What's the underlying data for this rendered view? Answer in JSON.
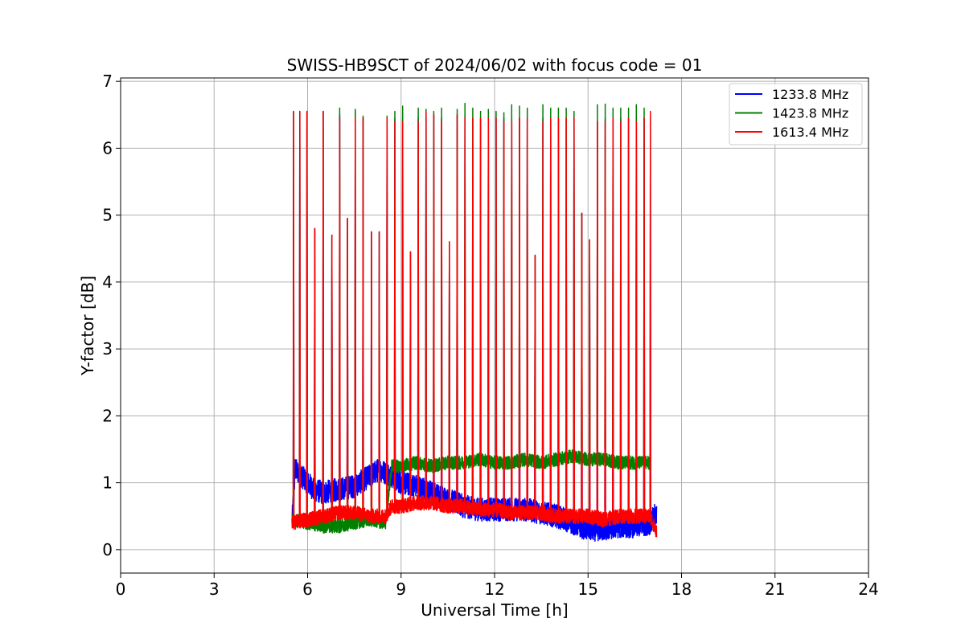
{
  "chart_data": {
    "type": "line",
    "title": "SWISS-HB9SCT of 2024/06/02 with focus code = 01",
    "xlabel": "Universal Time [h]",
    "ylabel": "Y-factor [dB]",
    "xlim": [
      0,
      24
    ],
    "ylim": [
      -0.35,
      7.05
    ],
    "xticks": [
      0,
      3,
      6,
      9,
      12,
      15,
      18,
      21,
      24
    ],
    "yticks": [
      0,
      1,
      2,
      3,
      4,
      5,
      6,
      7
    ],
    "grid": true,
    "legend_position": "top-right",
    "series": [
      {
        "name": "1233.8 MHz",
        "color": "#0000ff",
        "x": [
          5.5,
          5.6,
          5.8,
          6.0,
          6.2,
          6.5,
          7.0,
          7.5,
          8.0,
          8.3,
          8.7,
          9.0,
          9.5,
          10.0,
          10.5,
          11.0,
          11.5,
          12.0,
          12.5,
          13.0,
          13.5,
          14.0,
          14.5,
          15.0,
          15.5,
          16.0,
          16.5,
          17.0,
          17.2
        ],
        "y": [
          0.4,
          1.2,
          1.1,
          1.0,
          0.9,
          0.85,
          0.9,
          0.95,
          1.1,
          1.2,
          1.1,
          1.0,
          0.95,
          0.85,
          0.75,
          0.65,
          0.6,
          0.6,
          0.6,
          0.6,
          0.55,
          0.5,
          0.4,
          0.3,
          0.3,
          0.35,
          0.35,
          0.4,
          0.55
        ]
      },
      {
        "name": "1423.8 MHz",
        "color": "#008000",
        "x": [
          5.5,
          6.0,
          6.5,
          7.0,
          7.5,
          8.0,
          8.5,
          8.7,
          9.0,
          9.5,
          10.0,
          10.5,
          11.0,
          11.5,
          12.0,
          12.5,
          13.0,
          13.5,
          14.0,
          14.5,
          15.0,
          15.5,
          16.0,
          16.5,
          17.0
        ],
        "y": [
          0.45,
          0.4,
          0.35,
          0.35,
          0.4,
          0.45,
          0.4,
          1.25,
          1.25,
          1.3,
          1.25,
          1.3,
          1.3,
          1.35,
          1.3,
          1.3,
          1.35,
          1.3,
          1.35,
          1.4,
          1.35,
          1.35,
          1.3,
          1.3,
          1.3
        ]
      },
      {
        "name": "1613.4 MHz",
        "color": "#ff0000",
        "x": [
          5.5,
          6.0,
          6.5,
          7.0,
          7.5,
          8.0,
          8.5,
          8.7,
          9.0,
          9.5,
          10.0,
          10.5,
          11.0,
          11.5,
          12.0,
          12.5,
          13.0,
          13.5,
          14.0,
          14.5,
          15.0,
          15.5,
          16.0,
          16.5,
          17.0,
          17.2
        ],
        "y": [
          0.4,
          0.45,
          0.5,
          0.55,
          0.55,
          0.5,
          0.5,
          0.65,
          0.65,
          0.7,
          0.7,
          0.65,
          0.65,
          0.6,
          0.6,
          0.55,
          0.55,
          0.55,
          0.5,
          0.5,
          0.5,
          0.45,
          0.5,
          0.5,
          0.5,
          0.25
        ]
      }
    ],
    "spikes": {
      "x": [
        5.55,
        5.75,
        5.98,
        6.23,
        6.5,
        6.78,
        7.03,
        7.28,
        7.53,
        7.78,
        8.05,
        8.3,
        8.55,
        8.8,
        9.05,
        9.3,
        9.55,
        9.8,
        10.05,
        10.3,
        10.55,
        10.8,
        11.05,
        11.3,
        11.55,
        11.8,
        12.05,
        12.3,
        12.55,
        12.8,
        13.05,
        13.3,
        13.55,
        13.8,
        14.05,
        14.3,
        14.55,
        14.8,
        15.05,
        15.3,
        15.55,
        15.8,
        16.05,
        16.3,
        16.55,
        16.8,
        17.0
      ],
      "y_1233": [
        6.55,
        6.55,
        6.55,
        4.8,
        6.55,
        4.7,
        6.5,
        4.95,
        6.55,
        6.45,
        4.75,
        4.75,
        6.45,
        6.45,
        6.45,
        4.45,
        6.45,
        6.5,
        6.5,
        6.45,
        4.6,
        6.5,
        6.5,
        6.45,
        6.45,
        6.45,
        6.45,
        6.45,
        6.45,
        6.45,
        6.45,
        4.4,
        6.45,
        6.45,
        6.45,
        6.45,
        6.45,
        5.03,
        4.63,
        6.4,
        6.45,
        6.45,
        6.45,
        6.45,
        6.45,
        6.45,
        6.45
      ],
      "y_1423": [
        6.55,
        6.55,
        6.55,
        4.8,
        6.55,
        4.7,
        6.6,
        4.95,
        6.58,
        6.48,
        4.75,
        4.75,
        6.48,
        6.55,
        6.63,
        4.45,
        6.6,
        6.58,
        6.55,
        6.6,
        4.6,
        6.58,
        6.67,
        6.6,
        6.55,
        6.58,
        6.55,
        6.53,
        6.65,
        6.63,
        6.6,
        4.4,
        6.65,
        6.6,
        6.6,
        6.6,
        6.55,
        5.03,
        4.63,
        6.65,
        6.66,
        6.6,
        6.6,
        6.6,
        6.65,
        6.6,
        6.56
      ],
      "y_1613": [
        6.53,
        6.55,
        6.55,
        4.8,
        6.55,
        4.7,
        6.45,
        4.95,
        6.45,
        6.45,
        4.75,
        4.75,
        6.45,
        6.4,
        6.4,
        4.45,
        6.4,
        6.55,
        6.5,
        6.4,
        4.6,
        6.5,
        6.45,
        6.45,
        6.45,
        6.45,
        6.45,
        6.4,
        6.4,
        6.45,
        6.45,
        4.4,
        6.4,
        6.45,
        6.45,
        6.45,
        6.45,
        5.03,
        4.63,
        6.4,
        6.4,
        6.45,
        6.4,
        6.45,
        6.4,
        6.45,
        6.55
      ]
    }
  }
}
